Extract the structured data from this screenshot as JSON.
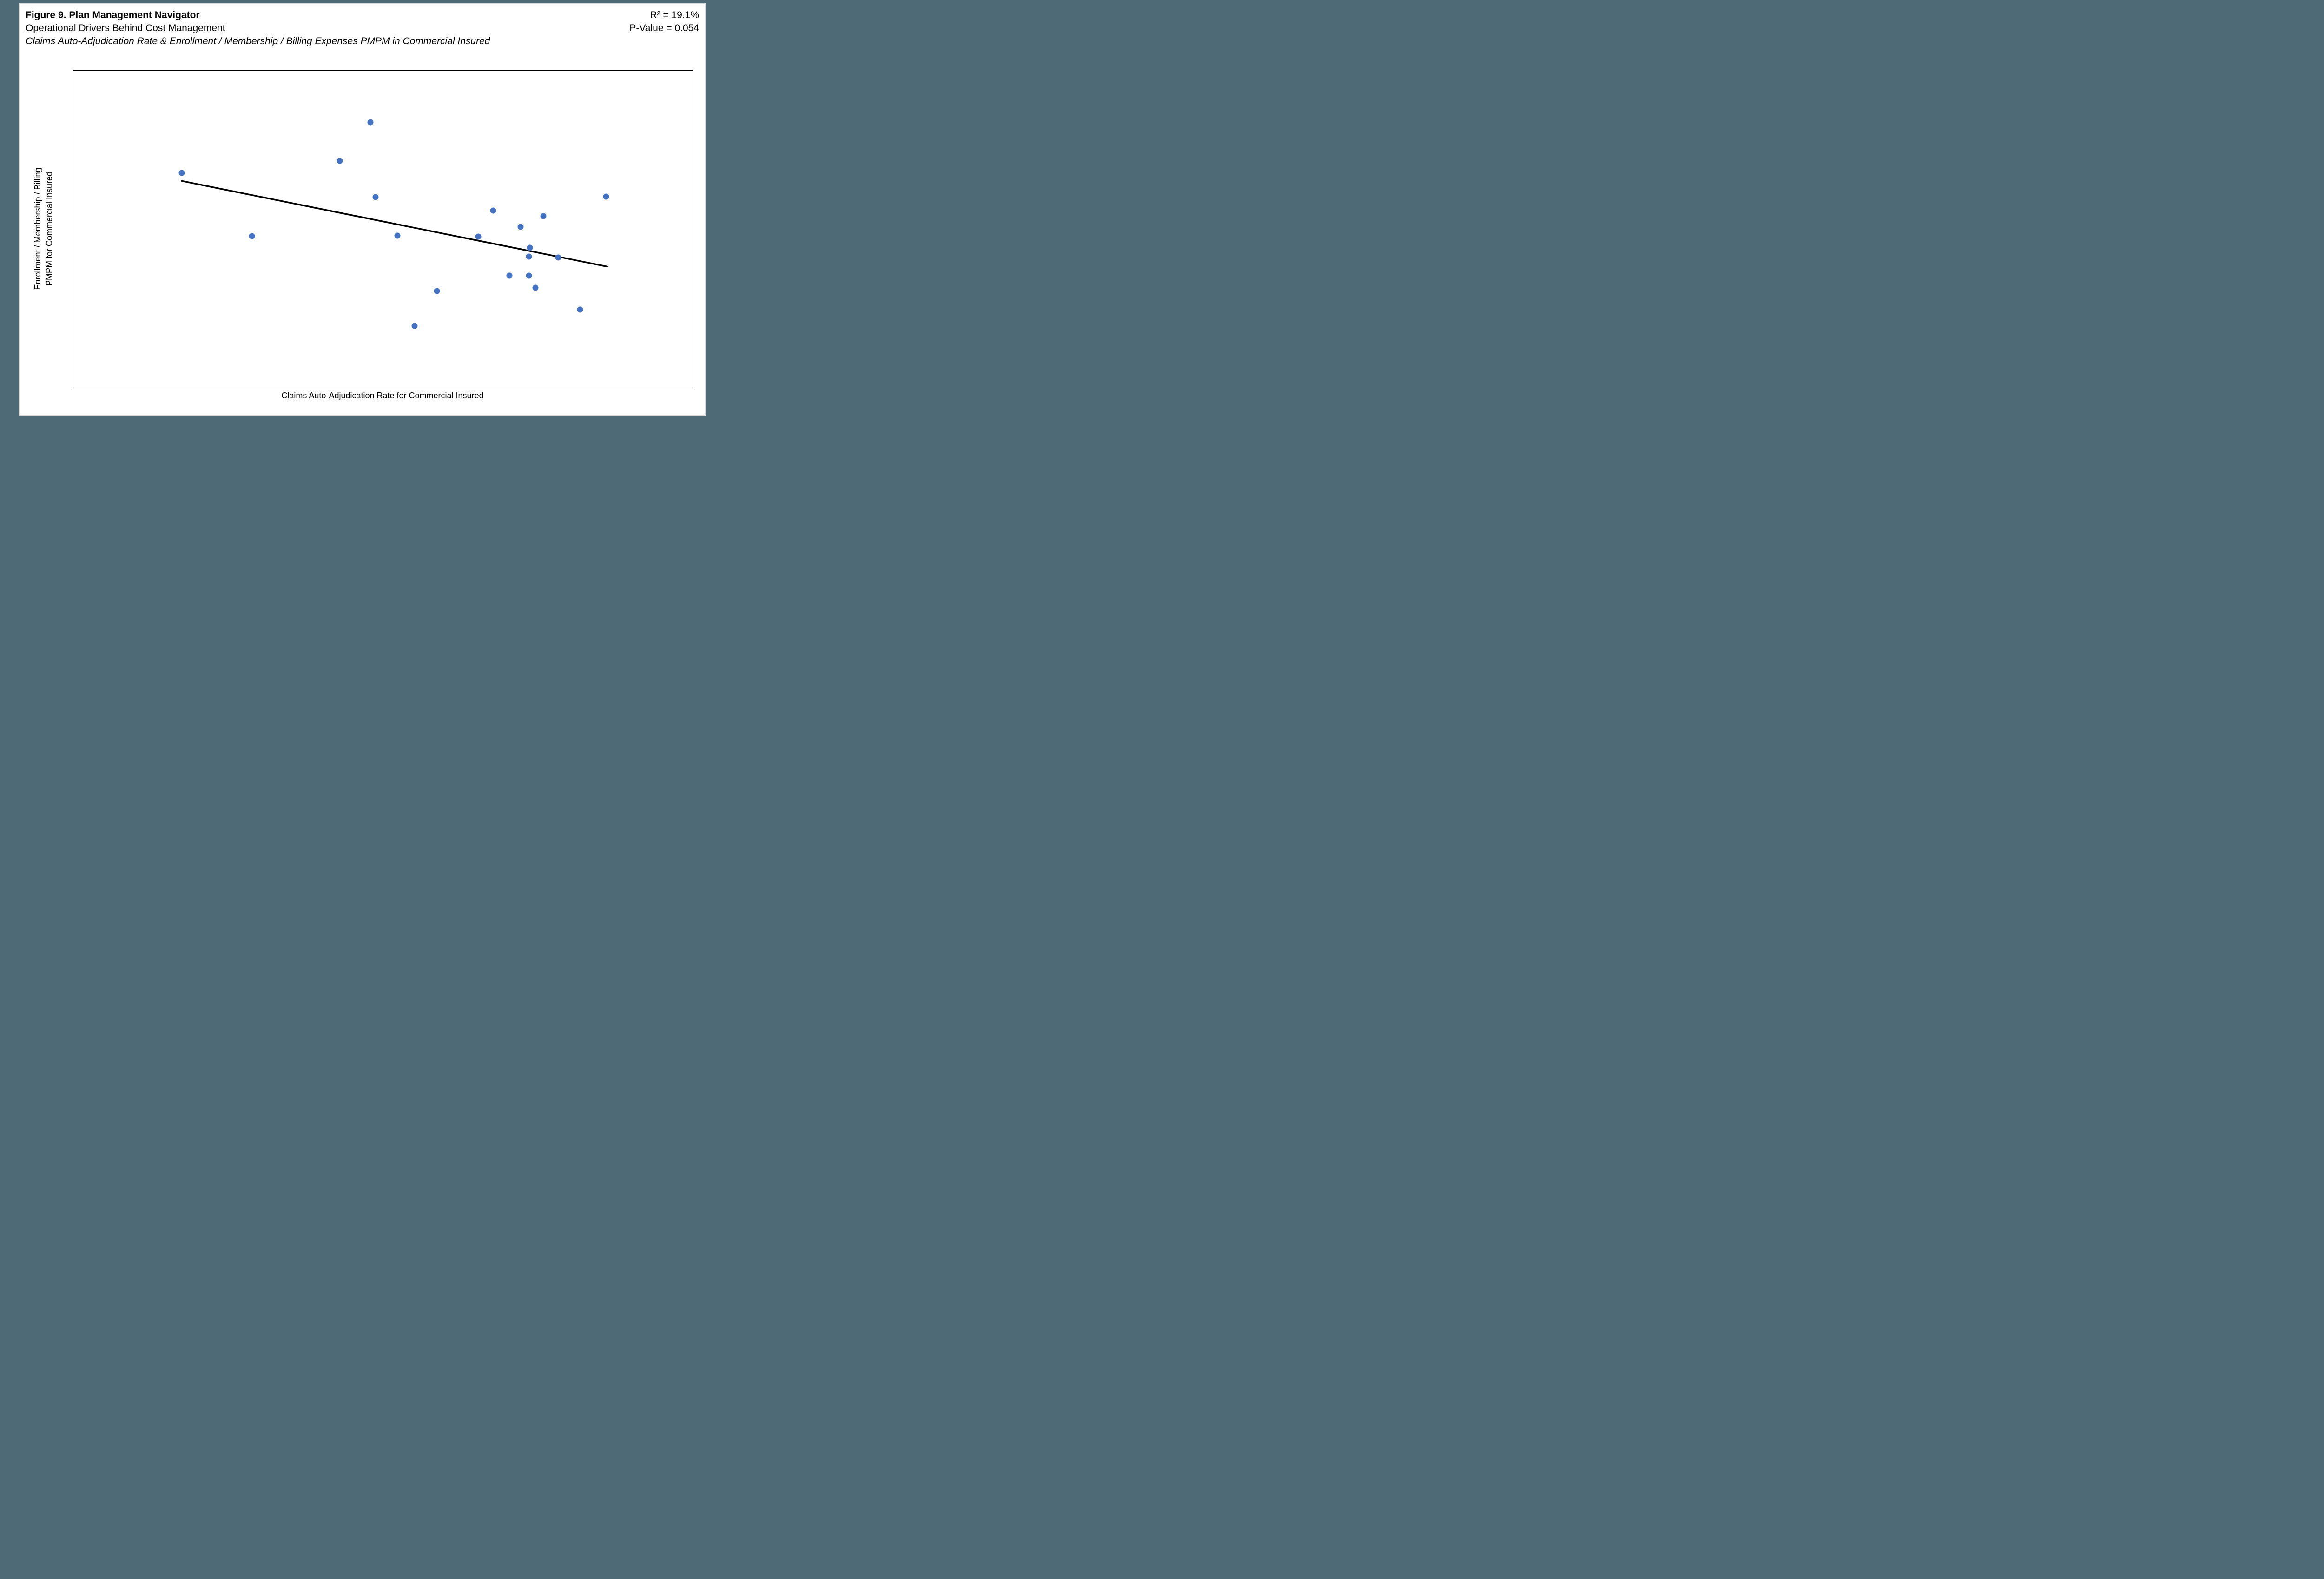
{
  "figure": {
    "title": "Figure 9. Plan Management Navigator",
    "subtitle": "Operational Drivers Behind Cost Management",
    "caption": "Claims Auto-Adjudication Rate & Enrollment / Membership / Billing Expenses PMPM in Commercial Insured",
    "stats": {
      "r_squared": "R² = 19.1%",
      "p_value": "P-Value = 0.054"
    }
  },
  "chart_data": {
    "type": "scatter",
    "title": "Claims Auto-Adjudication Rate & Enrollment / Membership / Billing Expenses PMPM in Commercial Insured",
    "xlabel": "Claims Auto-Adjudication Rate for Commercial Insured",
    "ylabel_line1": "Enrollment / Membership / Billing",
    "ylabel_line2": "PMPM for Commercial Insured",
    "r_squared_pct": 19.1,
    "p_value": 0.054,
    "axis_ticks_shown": false,
    "grid": false,
    "legend": "none",
    "marker_color": "#4472C4",
    "trendline_color": "#000000",
    "note": "Axes are unlabeled numerically; point coordinates are normalized 0-1 within the plot area (x: left to right, y: bottom to top).",
    "points_normalized": [
      {
        "x": 0.175,
        "y": 0.677
      },
      {
        "x": 0.288,
        "y": 0.478
      },
      {
        "x": 0.43,
        "y": 0.715
      },
      {
        "x": 0.48,
        "y": 0.837
      },
      {
        "x": 0.488,
        "y": 0.601
      },
      {
        "x": 0.523,
        "y": 0.479
      },
      {
        "x": 0.551,
        "y": 0.195
      },
      {
        "x": 0.587,
        "y": 0.305
      },
      {
        "x": 0.654,
        "y": 0.476
      },
      {
        "x": 0.678,
        "y": 0.558
      },
      {
        "x": 0.704,
        "y": 0.354
      },
      {
        "x": 0.722,
        "y": 0.508
      },
      {
        "x": 0.737,
        "y": 0.441
      },
      {
        "x": 0.736,
        "y": 0.414
      },
      {
        "x": 0.736,
        "y": 0.354
      },
      {
        "x": 0.746,
        "y": 0.315
      },
      {
        "x": 0.759,
        "y": 0.541
      },
      {
        "x": 0.783,
        "y": 0.41
      },
      {
        "x": 0.818,
        "y": 0.247
      },
      {
        "x": 0.86,
        "y": 0.602
      }
    ],
    "trendline_normalized": {
      "x1": 0.175,
      "y1": 0.652,
      "x2": 0.862,
      "y2": 0.382
    }
  },
  "colors": {
    "page_bg": "#4D6A76",
    "card_bg": "#FFFFFF",
    "card_edge": "#D9D9D9",
    "marker": "#4472C4",
    "ink": "#000000"
  }
}
